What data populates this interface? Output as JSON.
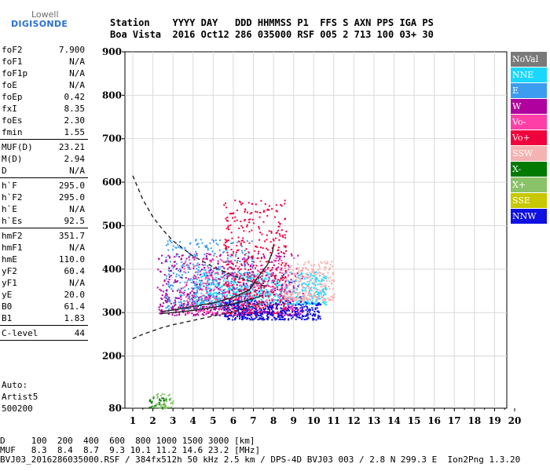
{
  "logo": {
    "line1": "Lowell",
    "line2": "DIGISONDE"
  },
  "header": {
    "row1": "Station    YYYY DAY   DDD HHMMSS P1  FFS S AXN PPS IGA PS",
    "row2": "Boa Vista  2016 Oct12 286 035000 RSF 005 2 713 100 03+ 30"
  },
  "params": [
    {
      "label": "foF2",
      "value": "7.900"
    },
    {
      "label": "foF1",
      "value": "N/A"
    },
    {
      "label": "foF1p",
      "value": "N/A"
    },
    {
      "label": "foE",
      "value": "N/A"
    },
    {
      "label": "foEp",
      "value": "0.42"
    },
    {
      "label": "fxI",
      "value": "8.35"
    },
    {
      "label": "foEs",
      "value": "2.30"
    },
    {
      "label": "fmin",
      "value": "1.55"
    },
    {
      "sep": true
    },
    {
      "label": "MUF(D)",
      "value": "23.21"
    },
    {
      "label": "M(D)",
      "value": "2.94"
    },
    {
      "label": "D",
      "value": "N/A"
    },
    {
      "sep": true
    },
    {
      "label": "h`F",
      "value": "295.0"
    },
    {
      "label": "h`F2",
      "value": "295.0"
    },
    {
      "label": "h`E",
      "value": "N/A"
    },
    {
      "label": "h`Es",
      "value": "92.5"
    },
    {
      "sep": true
    },
    {
      "label": "hmF2",
      "value": "351.7"
    },
    {
      "label": "hmF1",
      "value": "N/A"
    },
    {
      "label": "hmE",
      "value": "110.0"
    },
    {
      "label": "yF2",
      "value": "60.4"
    },
    {
      "label": "yF1",
      "value": "N/A"
    },
    {
      "label": "yE",
      "value": "20.0"
    },
    {
      "label": "B0",
      "value": "61.4"
    },
    {
      "label": "B1",
      "value": "1.83"
    },
    {
      "sep": true
    },
    {
      "label": "C-level",
      "value": "44"
    },
    {
      "sep": true
    }
  ],
  "auto": {
    "line1": "Auto:",
    "line2": "Artist5",
    "line3": "500200"
  },
  "legend": [
    {
      "label": "NoVal",
      "color": "#7a7a7a"
    },
    {
      "label": "NNE",
      "color": "#19d7ff"
    },
    {
      "label": "E",
      "color": "#3c9cf0"
    },
    {
      "label": "W",
      "color": "#b0009e"
    },
    {
      "label": "Vo-",
      "color": "#ff3fa8"
    },
    {
      "label": "Vo+",
      "color": "#f0003c"
    },
    {
      "label": "SSW",
      "color": "#f5b2b2"
    },
    {
      "label": "X-",
      "color": "#007a00"
    },
    {
      "label": "X+",
      "color": "#8ac26a"
    },
    {
      "label": "SSE",
      "color": "#c8c800"
    },
    {
      "label": "NNW",
      "color": "#1010e0"
    }
  ],
  "footer": {
    "line1": "D     100  200  400  600  800 1000 1500 3000 [km]",
    "line2": "MUF   8.3  8.4  8.7  9.3 10.1 11.2 14.6 23.2 [MHz]",
    "line3": "BVJ03_2016286035000.RSF / 384fx512h 50 kHz 2.5 km / DPS-4D BVJ03 003 / 2.8 N 299.3 E  Ion2Png 1.3.20"
  },
  "chart_data": {
    "type": "scatter",
    "xlim": [
      1,
      20
    ],
    "ylim": [
      80,
      900
    ],
    "x_ticks": [
      1,
      2,
      3,
      4,
      5,
      6,
      7,
      8,
      9,
      10,
      11,
      12,
      13,
      14,
      15,
      16,
      17,
      18,
      19,
      20
    ],
    "y_ticks": [
      80,
      200,
      300,
      400,
      500,
      600,
      700,
      800,
      900
    ],
    "grid": true,
    "legend_position": "right",
    "trace_dashed_upper": [
      [
        1.0,
        615
      ],
      [
        1.5,
        560
      ],
      [
        2.0,
        520
      ],
      [
        2.5,
        490
      ],
      [
        3.0,
        465
      ],
      [
        4.0,
        430
      ],
      [
        5.0,
        405
      ],
      [
        6.0,
        385
      ],
      [
        7.0,
        370
      ],
      [
        7.6,
        360
      ]
    ],
    "trace_dashed_lower": [
      [
        1.0,
        240
      ],
      [
        1.5,
        250
      ],
      [
        2.0,
        258
      ],
      [
        2.5,
        266
      ],
      [
        3.0,
        272
      ],
      [
        4.0,
        282
      ],
      [
        5.0,
        292
      ],
      [
        6.0,
        302
      ],
      [
        7.0,
        315
      ],
      [
        7.5,
        325
      ]
    ],
    "trace_solid_upper": [
      [
        2.4,
        302
      ],
      [
        3.0,
        306
      ],
      [
        4.0,
        314
      ],
      [
        5.0,
        322
      ],
      [
        6.0,
        335
      ],
      [
        6.8,
        352
      ],
      [
        7.2,
        380
      ],
      [
        7.7,
        410
      ],
      [
        7.95,
        440
      ],
      [
        8.0,
        455
      ]
    ],
    "trace_solid_lower": [
      [
        2.4,
        298
      ],
      [
        3.0,
        300
      ],
      [
        4.0,
        305
      ],
      [
        5.0,
        312
      ],
      [
        6.0,
        320
      ],
      [
        7.0,
        332
      ],
      [
        7.5,
        340
      ]
    ],
    "traces": [
      {
        "name": "NNE",
        "f": [
          4.0,
          10.6
        ],
        "h": [
          320,
          395
        ],
        "count": 700
      },
      {
        "name": "E",
        "f": [
          2.6,
          7.0
        ],
        "h": [
          310,
          470
        ],
        "count": 500
      },
      {
        "name": "W",
        "f": [
          2.2,
          9.5
        ],
        "h": [
          295,
          440
        ],
        "count": 600
      },
      {
        "name": "Vo-",
        "f": [
          3.5,
          9.0
        ],
        "h": [
          300,
          430
        ],
        "count": 300
      },
      {
        "name": "Vo+",
        "f": [
          5.5,
          8.6
        ],
        "h": [
          300,
          560
        ],
        "count": 450
      },
      {
        "name": "SSW",
        "f": [
          8.5,
          11.0
        ],
        "h": [
          330,
          420
        ],
        "count": 250
      },
      {
        "name": "X-",
        "f": [
          1.8,
          2.8
        ],
        "h": [
          82,
          110
        ],
        "count": 40
      },
      {
        "name": "X+",
        "f": [
          2.0,
          3.0
        ],
        "h": [
          82,
          115
        ],
        "count": 40
      },
      {
        "name": "NNW",
        "f": [
          5.5,
          10.3
        ],
        "h": [
          285,
          330
        ],
        "count": 350
      }
    ]
  }
}
